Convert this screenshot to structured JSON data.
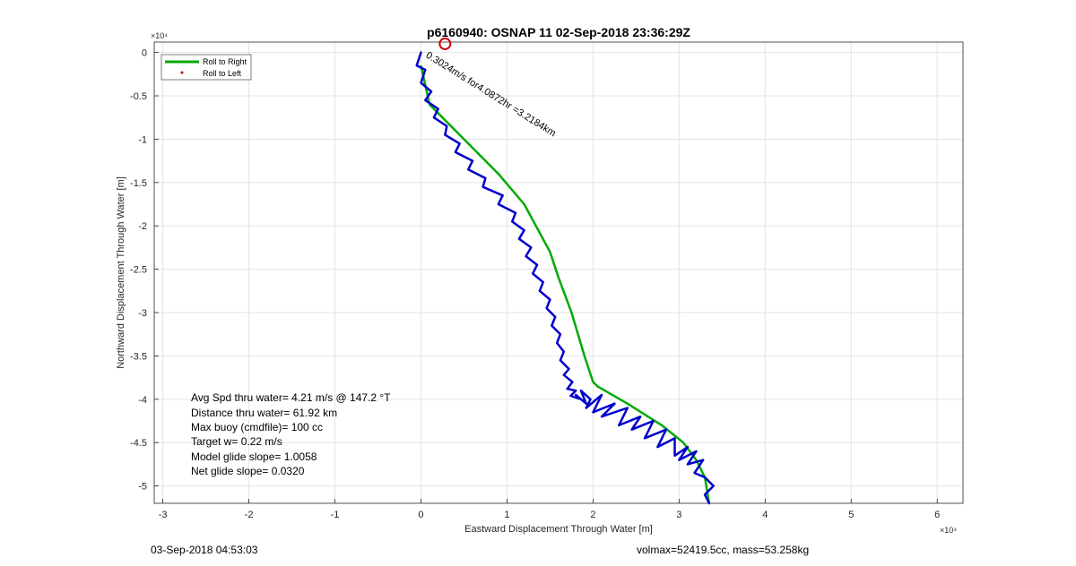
{
  "chart_data": {
    "type": "line",
    "title": "p6160940: OSNAP 11 02-Sep-2018 23:36:29Z",
    "xlabel": "Eastward Displacement Through Water [m]",
    "ylabel": "Northward Displacement Through Water [m]",
    "x_multiplier": "×10⁴",
    "y_multiplier": "×10⁴",
    "xlim": [
      -3.1,
      6.3
    ],
    "ylim": [
      -5.2,
      0.12
    ],
    "xticks": [
      -3,
      -2,
      -1,
      0,
      1,
      2,
      3,
      4,
      5,
      6
    ],
    "xtick_labels": [
      "-3",
      "-2",
      "-1",
      "0",
      "1",
      "2",
      "3",
      "4",
      "5",
      "6"
    ],
    "yticks": [
      0,
      -0.5,
      -1,
      -1.5,
      -2,
      -2.5,
      -3,
      -3.5,
      -4,
      -4.5,
      -5
    ],
    "ytick_labels": [
      "0",
      "-0.5",
      "-1",
      "-1.5",
      "-2",
      "-2.5",
      "-3",
      "-3.5",
      "-4",
      "-4.5",
      "-5"
    ],
    "grid": true,
    "legend_position": "top-left",
    "legend": [
      {
        "name": "Roll to Right",
        "color": "#00aa00",
        "style": "line"
      },
      {
        "name": "Roll to Left",
        "color": "#cc0000",
        "style": "dot"
      }
    ],
    "series": [
      {
        "name": "Roll to Right",
        "color": "#00aa00",
        "x": [
          0.0,
          0.1,
          0.5,
          0.9,
          1.2,
          1.5,
          1.6,
          1.75,
          1.9,
          2.0,
          2.05,
          2.4,
          2.8,
          3.05,
          3.2,
          3.3,
          3.35
        ],
        "y": [
          -0.15,
          -0.6,
          -1.0,
          -1.4,
          -1.75,
          -2.3,
          -2.6,
          -3.0,
          -3.5,
          -3.8,
          -3.85,
          -4.05,
          -4.3,
          -4.5,
          -4.7,
          -4.9,
          -5.2
        ]
      }
    ],
    "track": {
      "color": "#0000cc",
      "x": [
        0.0,
        -0.05,
        0.05,
        0.0,
        0.12,
        0.05,
        0.2,
        0.15,
        0.3,
        0.28,
        0.45,
        0.4,
        0.6,
        0.55,
        0.75,
        0.72,
        0.95,
        0.9,
        1.1,
        1.06,
        1.2,
        1.14,
        1.28,
        1.22,
        1.35,
        1.3,
        1.42,
        1.38,
        1.5,
        1.46,
        1.56,
        1.52,
        1.62,
        1.58,
        1.66,
        1.62,
        1.72,
        1.66,
        1.76,
        1.7,
        1.8,
        1.74,
        1.86,
        1.8,
        1.92,
        1.86,
        1.97,
        1.92,
        2.1,
        2.0,
        2.25,
        2.1,
        2.4,
        2.3,
        2.55,
        2.45,
        2.7,
        2.6,
        2.85,
        2.75,
        2.95,
        2.95,
        3.1,
        3.0,
        3.2,
        3.1,
        3.28,
        3.18,
        3.3,
        3.4,
        3.3,
        3.35
      ],
      "y": [
        0.0,
        -0.15,
        -0.2,
        -0.35,
        -0.45,
        -0.55,
        -0.65,
        -0.75,
        -0.85,
        -0.95,
        -1.05,
        -1.15,
        -1.25,
        -1.35,
        -1.45,
        -1.55,
        -1.65,
        -1.75,
        -1.85,
        -1.95,
        -2.05,
        -2.15,
        -2.25,
        -2.35,
        -2.45,
        -2.55,
        -2.65,
        -2.75,
        -2.85,
        -2.95,
        -3.05,
        -3.15,
        -3.25,
        -3.35,
        -3.45,
        -3.55,
        -3.65,
        -3.72,
        -3.8,
        -3.88,
        -3.9,
        -3.96,
        -4.0,
        -3.95,
        -4.05,
        -3.9,
        -4.0,
        -4.1,
        -3.95,
        -4.15,
        -4.05,
        -4.2,
        -4.1,
        -4.3,
        -4.2,
        -4.35,
        -4.25,
        -4.45,
        -4.35,
        -4.55,
        -4.45,
        -4.65,
        -4.55,
        -4.7,
        -4.6,
        -4.75,
        -4.7,
        -4.85,
        -4.9,
        -5.0,
        -5.1,
        -5.2
      ]
    },
    "marker": {
      "x": 0.28,
      "y": 0.1,
      "color": "#cc0000",
      "style": "open-circle"
    },
    "annotation": {
      "text": "0.3024m/s for4.0872hr =3.2184km",
      "x": 0.05,
      "y": -0.05,
      "angle_deg": 32
    },
    "stats": [
      "Avg Spd thru water=  4.21 m/s @ 147.2 °T",
      "Distance thru water= 61.92 km",
      "Max buoy (cmdfile)= 100 cc",
      "Target w= 0.22 m/s",
      "Model glide slope= 1.0058",
      "Net glide slope= 0.0320"
    ]
  },
  "footer": {
    "left": "03-Sep-2018 04:53:03",
    "right": "volmax=52419.5cc, mass=53.258kg"
  }
}
